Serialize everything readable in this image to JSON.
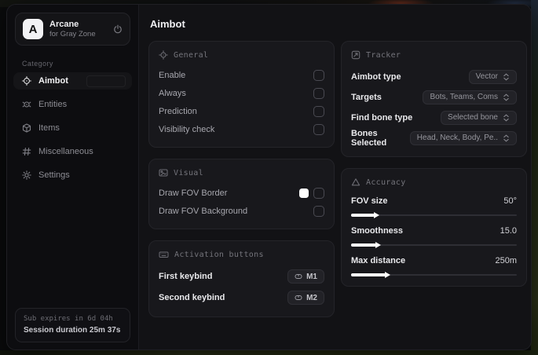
{
  "app": {
    "name": "Arcane",
    "subtitle": "for Gray Zone",
    "logo_letter": "A"
  },
  "sidebar": {
    "category_label": "Category",
    "items": [
      {
        "label": "Aimbot",
        "icon": "crosshair-icon",
        "active": true
      },
      {
        "label": "Entities",
        "icon": "scan-icon",
        "active": false
      },
      {
        "label": "Items",
        "icon": "package-icon",
        "active": false
      },
      {
        "label": "Miscellaneous",
        "icon": "hash-icon",
        "active": false
      },
      {
        "label": "Settings",
        "icon": "gear-icon",
        "active": false
      }
    ],
    "footer": {
      "sub_expires": "Sub expires in 6d 04h",
      "session_duration": "Session duration 25m 37s"
    }
  },
  "main": {
    "title": "Aimbot"
  },
  "general": {
    "title": "General",
    "rows": [
      {
        "label": "Enable",
        "checked": false
      },
      {
        "label": "Always",
        "checked": false
      },
      {
        "label": "Prediction",
        "checked": false
      },
      {
        "label": "Visibility check",
        "checked": false
      }
    ]
  },
  "visual": {
    "title": "Visual",
    "rows": [
      {
        "label": "Draw FOV Border",
        "swatch_color": "#ffffff",
        "checked": false
      },
      {
        "label": "Draw FOV Background",
        "checked": false
      }
    ]
  },
  "activation": {
    "title": "Activation buttons",
    "rows": [
      {
        "label": "First keybind",
        "key": "M1"
      },
      {
        "label": "Second keybind",
        "key": "M2"
      }
    ]
  },
  "tracker": {
    "title": "Tracker",
    "rows": [
      {
        "label": "Aimbot type",
        "value": "Vector"
      },
      {
        "label": "Targets",
        "value": "Bots, Teams, Coms"
      },
      {
        "label": "Find bone type",
        "value": "Selected bone"
      },
      {
        "label": "Bones Selected",
        "value": "Head, Neck, Body, Pe.."
      }
    ]
  },
  "accuracy": {
    "title": "Accuracy",
    "sliders": [
      {
        "label": "FOV size",
        "value": "50°",
        "percent": 14
      },
      {
        "label": "Smoothness",
        "value": "15.0",
        "percent": 15
      },
      {
        "label": "Max distance",
        "value": "250m",
        "percent": 21
      }
    ]
  },
  "colors": {
    "fov_border_swatch": "#ffffff",
    "accent": "#ffffff"
  }
}
